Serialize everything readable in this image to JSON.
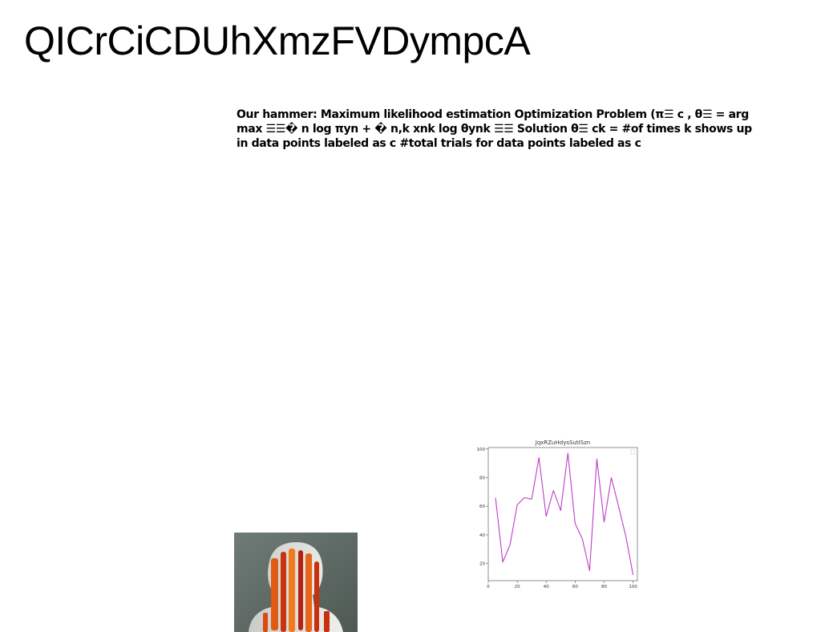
{
  "slide": {
    "title": "QICrCiCDUhXmzFVDympcA",
    "body": "Our hammer: Maximum likelihood estimation Optimization Problem (π☰ c , θ☰ = arg max ☰☰� n log πyn + � n,k xnk log θynk ☰☰ Solution θ☰ ck = #of times k shows up in data points labeled as c #total trials for data points labeled as c"
  },
  "photo": {
    "subject": "sculpted-head-with-orange-red-stripes"
  },
  "colors": {
    "line": "#c03bc8",
    "axis": "#555555",
    "photo_bg": "#5f6b66"
  },
  "chart_data": {
    "type": "line",
    "title": "JqxRZuHdysSutISzn",
    "xlabel": "",
    "ylabel": "",
    "xlim": [
      0,
      103
    ],
    "ylim": [
      8,
      101
    ],
    "xticks": [
      0,
      20,
      40,
      60,
      80,
      100
    ],
    "yticks": [
      20,
      40,
      60,
      80,
      100
    ],
    "grid": false,
    "legend": "top-right",
    "series": [
      {
        "x": [
          5,
          10,
          15,
          20,
          25,
          30,
          35,
          40,
          45,
          50,
          55,
          60,
          65,
          70,
          75,
          80,
          85,
          90,
          95,
          100
        ],
        "values": [
          66,
          21,
          33,
          61,
          66,
          65,
          94,
          53,
          71,
          57,
          97,
          48,
          37,
          15,
          93,
          49,
          80,
          60,
          39,
          12
        ]
      }
    ]
  }
}
